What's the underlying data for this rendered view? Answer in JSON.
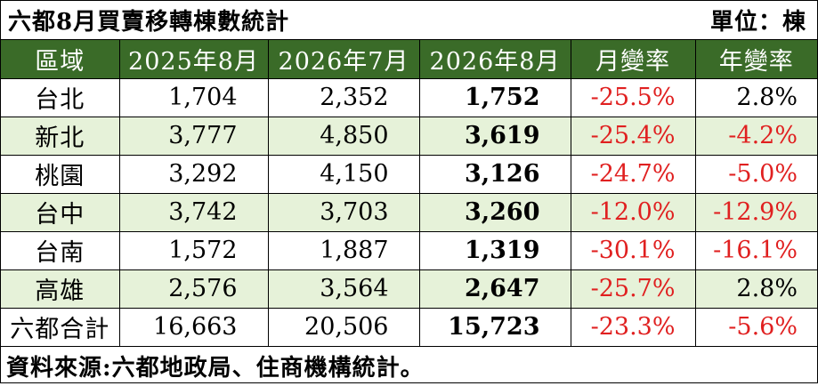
{
  "title": "六都8月買賣移轉棟數統計",
  "unit": "單位：棟",
  "headers": [
    "區域",
    "2025年8月",
    "2026年7月",
    "2026年8月",
    "月變率",
    "年變率"
  ],
  "rows": [
    {
      "region": "台北",
      "y2025_aug": "1,704",
      "y2026_jul": "2,352",
      "y2026_aug": "1,752",
      "mom": "-25.5%",
      "yoy": "2.8%"
    },
    {
      "region": "新北",
      "y2025_aug": "3,777",
      "y2026_jul": "4,850",
      "y2026_aug": "3,619",
      "mom": "-25.4%",
      "yoy": "-4.2%"
    },
    {
      "region": "桃園",
      "y2025_aug": "3,292",
      "y2026_jul": "4,150",
      "y2026_aug": "3,126",
      "mom": "-24.7%",
      "yoy": "-5.0%"
    },
    {
      "region": "台中",
      "y2025_aug": "3,742",
      "y2026_jul": "3,703",
      "y2026_aug": "3,260",
      "mom": "-12.0%",
      "yoy": "-12.9%"
    },
    {
      "region": "台南",
      "y2025_aug": "1,572",
      "y2026_jul": "1,887",
      "y2026_aug": "1,319",
      "mom": "-30.1%",
      "yoy": "-16.1%"
    },
    {
      "region": "高雄",
      "y2025_aug": "2,576",
      "y2026_jul": "3,564",
      "y2026_aug": "2,647",
      "mom": "-25.7%",
      "yoy": "2.8%"
    },
    {
      "region": "六都合計",
      "y2025_aug": "16,663",
      "y2026_jul": "20,506",
      "y2026_aug": "15,723",
      "mom": "-23.3%",
      "yoy": "-5.6%"
    }
  ],
  "source": "資料來源:六都地政局、住商機構統計。",
  "colors": {
    "header_bg": "#3a6b28",
    "row_shade": "#e6f2d9",
    "negative": "#e02020"
  }
}
